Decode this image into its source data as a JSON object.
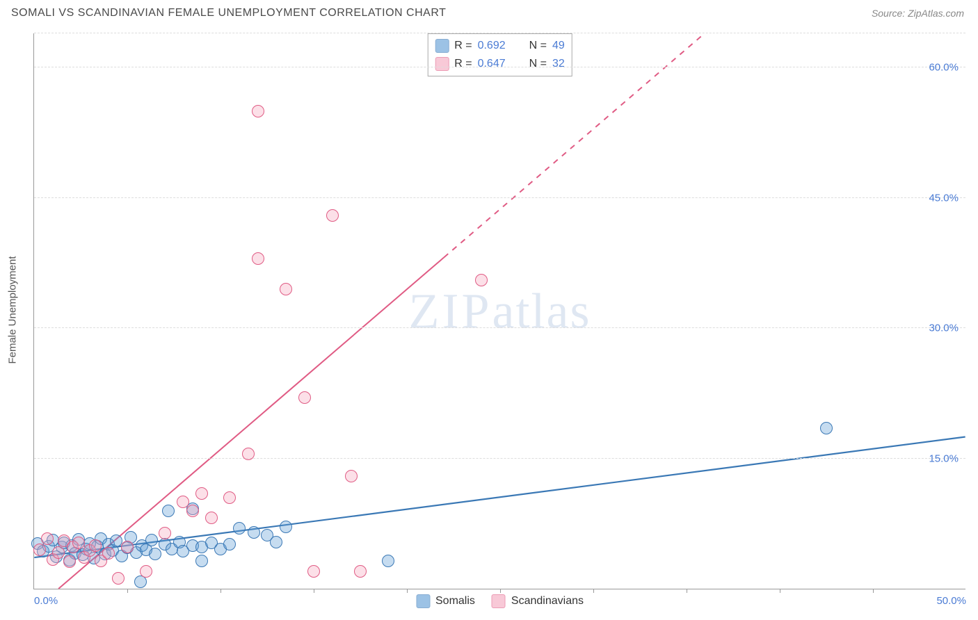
{
  "header": {
    "title": "SOMALI VS SCANDINAVIAN FEMALE UNEMPLOYMENT CORRELATION CHART",
    "source": "Source: ZipAtlas.com"
  },
  "watermark": {
    "zip": "ZIP",
    "atlas": "atlas"
  },
  "chart": {
    "type": "scatter",
    "ylabel": "Female Unemployment",
    "xlim": [
      0,
      50
    ],
    "ylim": [
      0,
      64
    ],
    "background_color": "#ffffff",
    "grid_color": "#dddddd",
    "axis_line_color": "#999999",
    "tick_label_color": "#4a7bd4",
    "ylabel_color": "#555555",
    "yticks": [
      15,
      30,
      45,
      60
    ],
    "ytick_labels": [
      "15.0%",
      "30.0%",
      "45.0%",
      "60.0%"
    ],
    "xticks": [
      5,
      10,
      15,
      20,
      25,
      30,
      35,
      40,
      45
    ],
    "x_axis_labels": {
      "left": {
        "value": "0.0%",
        "x": 0
      },
      "right": {
        "value": "50.0%",
        "x": 50
      }
    },
    "marker_radius": 9,
    "marker_fill_opacity": 0.35,
    "marker_stroke_width": 1.2,
    "series": [
      {
        "id": "somalis",
        "label": "Somalis",
        "color": "#5b9bd5",
        "stroke": "#3a78b5",
        "R": "0.692",
        "N": "49",
        "trend": {
          "x1": 0,
          "y1": 3.6,
          "x2": 50,
          "y2": 17.5,
          "width": 2.2,
          "dash_from_x": null
        },
        "points": [
          [
            0.2,
            5.2
          ],
          [
            0.5,
            4.3
          ],
          [
            0.8,
            4.9
          ],
          [
            1.0,
            5.6
          ],
          [
            1.2,
            3.7
          ],
          [
            1.5,
            4.8
          ],
          [
            1.6,
            5.3
          ],
          [
            1.9,
            3.3
          ],
          [
            2.0,
            5.0
          ],
          [
            2.2,
            4.1
          ],
          [
            2.4,
            5.7
          ],
          [
            2.6,
            3.9
          ],
          [
            2.8,
            4.6
          ],
          [
            3.0,
            5.2
          ],
          [
            3.2,
            3.5
          ],
          [
            3.4,
            4.9
          ],
          [
            3.6,
            5.8
          ],
          [
            3.8,
            4.0
          ],
          [
            4.0,
            5.1
          ],
          [
            4.2,
            4.4
          ],
          [
            4.4,
            5.5
          ],
          [
            4.7,
            3.8
          ],
          [
            5.0,
            4.7
          ],
          [
            5.2,
            5.9
          ],
          [
            5.5,
            4.2
          ],
          [
            5.7,
            0.8
          ],
          [
            5.8,
            5.0
          ],
          [
            6.0,
            4.5
          ],
          [
            6.3,
            5.6
          ],
          [
            6.5,
            4.0
          ],
          [
            7.0,
            5.1
          ],
          [
            7.2,
            9.0
          ],
          [
            7.4,
            4.6
          ],
          [
            7.8,
            5.4
          ],
          [
            8.0,
            4.3
          ],
          [
            8.5,
            9.2
          ],
          [
            8.5,
            5.0
          ],
          [
            9.0,
            4.8
          ],
          [
            9.0,
            3.2
          ],
          [
            9.5,
            5.3
          ],
          [
            10.0,
            4.6
          ],
          [
            10.5,
            5.1
          ],
          [
            11.0,
            7.0
          ],
          [
            11.8,
            6.5
          ],
          [
            12.5,
            6.2
          ],
          [
            13.0,
            5.4
          ],
          [
            13.5,
            7.1
          ],
          [
            19.0,
            3.2
          ],
          [
            42.5,
            18.5
          ]
        ]
      },
      {
        "id": "scandinavians",
        "label": "Scandinavians",
        "color": "#f5a6bd",
        "stroke": "#e05b84",
        "R": "0.647",
        "N": "32",
        "trend": {
          "x1": 1.3,
          "y1": 0,
          "x2": 36,
          "y2": 64,
          "width": 2.0,
          "dash_from_x": 22
        },
        "points": [
          [
            0.3,
            4.5
          ],
          [
            0.7,
            5.8
          ],
          [
            1.0,
            3.4
          ],
          [
            1.3,
            4.2
          ],
          [
            1.6,
            5.5
          ],
          [
            1.9,
            3.1
          ],
          [
            2.1,
            4.8
          ],
          [
            2.4,
            5.3
          ],
          [
            2.7,
            3.6
          ],
          [
            3.0,
            4.4
          ],
          [
            3.3,
            5.0
          ],
          [
            3.6,
            3.2
          ],
          [
            4.0,
            4.1
          ],
          [
            4.5,
            1.2
          ],
          [
            5.0,
            4.8
          ],
          [
            6.0,
            2.0
          ],
          [
            7.0,
            6.4
          ],
          [
            8.0,
            10.0
          ],
          [
            8.5,
            9.0
          ],
          [
            9.0,
            11.0
          ],
          [
            9.5,
            8.2
          ],
          [
            10.5,
            10.5
          ],
          [
            11.5,
            15.5
          ],
          [
            12.0,
            38.0
          ],
          [
            12.0,
            55.0
          ],
          [
            13.5,
            34.5
          ],
          [
            14.5,
            22.0
          ],
          [
            15.0,
            2.0
          ],
          [
            16.0,
            43.0
          ],
          [
            17.0,
            13.0
          ],
          [
            17.5,
            2.0
          ],
          [
            24.0,
            35.5
          ]
        ]
      }
    ],
    "stats_box": {
      "labelR": "R =",
      "labelN": "N ="
    },
    "bottom_legend_labels": {
      "somalis": "Somalis",
      "scandinavians": "Scandinavians"
    }
  }
}
